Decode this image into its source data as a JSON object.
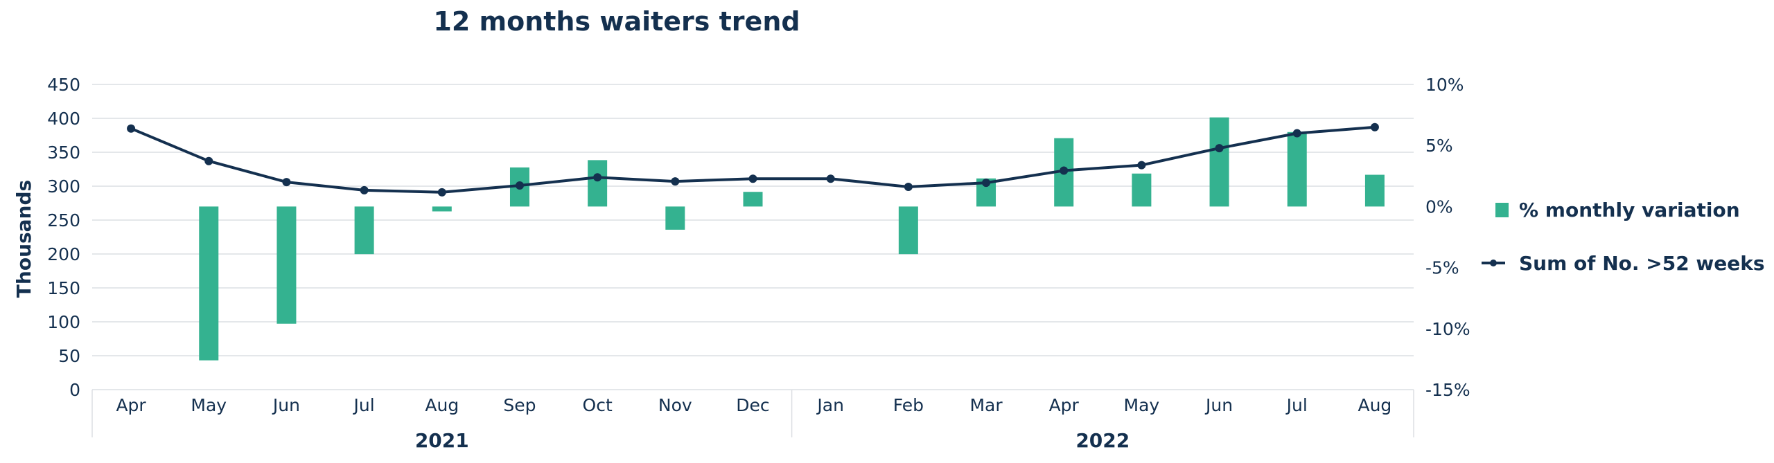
{
  "chart_data": {
    "type": "bar+line",
    "title": "12 months waiters trend",
    "ylabel": "Thousands",
    "categories": [
      "Apr",
      "May",
      "Jun",
      "Jul",
      "Aug",
      "Sep",
      "Oct",
      "Nov",
      "Dec",
      "Jan",
      "Feb",
      "Mar",
      "Apr",
      "May",
      "Jun",
      "Jul",
      "Aug"
    ],
    "groups": [
      {
        "label": "2021",
        "count": 9
      },
      {
        "label": "2022",
        "count": 8
      }
    ],
    "y_left": {
      "min": 0,
      "max": 450,
      "ticks": [
        "0",
        "50",
        "100",
        "150",
        "200",
        "250",
        "300",
        "350",
        "400",
        "450"
      ],
      "tick_values": [
        0,
        50,
        100,
        150,
        200,
        250,
        300,
        350,
        400,
        450
      ]
    },
    "y_right": {
      "min": -15,
      "max": 10,
      "ticks": [
        "10%",
        "5%",
        "0%",
        "-5%",
        "-10%",
        "-15%"
      ],
      "tick_values": [
        10,
        5,
        0,
        -5,
        -10,
        -15
      ]
    },
    "series": [
      {
        "name": "% monthly variation",
        "type": "bar",
        "axis": "right",
        "color": "#34b290",
        "values": [
          null,
          -12.6,
          -9.6,
          -3.9,
          -0.4,
          3.2,
          3.8,
          -1.9,
          1.2,
          0,
          -3.9,
          2.3,
          5.6,
          2.7,
          7.3,
          6.1,
          2.6
        ]
      },
      {
        "name": "Sum of No. >52 weeks",
        "type": "line",
        "axis": "left",
        "color": "#14304f",
        "values": [
          385,
          337,
          306,
          294,
          291,
          301,
          313,
          307,
          311,
          311,
          299,
          305,
          323,
          331,
          356,
          378,
          387
        ]
      }
    ],
    "legend": {
      "position": "right"
    },
    "grid": true
  }
}
